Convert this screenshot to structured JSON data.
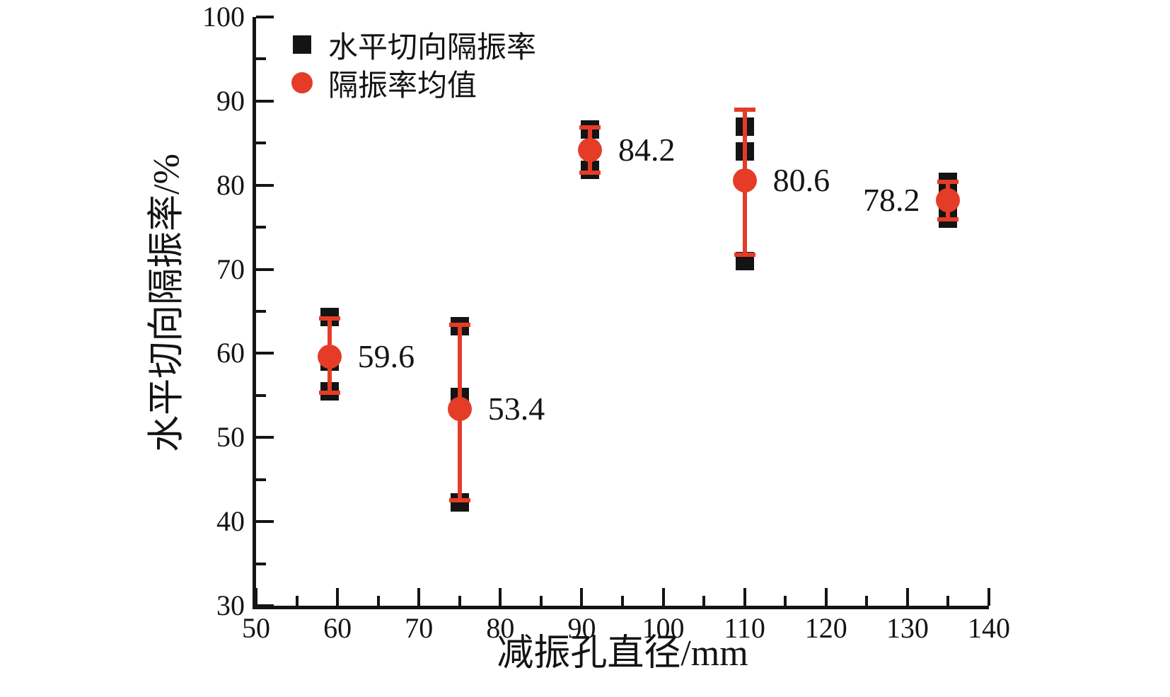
{
  "chart_data": {
    "type": "scatter",
    "title": "",
    "xlabel": "减振孔直径/mm",
    "ylabel": "水平切向隔振率/%",
    "xlim": [
      50,
      140
    ],
    "ylim": [
      30,
      100
    ],
    "x_major_ticks": [
      50,
      60,
      70,
      80,
      90,
      100,
      110,
      120,
      130,
      140
    ],
    "y_major_ticks": [
      30,
      40,
      50,
      60,
      70,
      80,
      90,
      100
    ],
    "minor_ticks": "one midway between each pair of major ticks (step 5)",
    "grid": false,
    "colors": {
      "black": "#141414",
      "red": "#e53c28"
    },
    "legend": {
      "position": "inside-top-left",
      "entries": [
        {
          "marker": "square",
          "color": "#141414",
          "label": "水平切向隔振率"
        },
        {
          "marker": "circle",
          "color": "#e53c28",
          "label": "隔振率均值"
        }
      ]
    },
    "series": [
      {
        "name": "水平切向隔振率",
        "marker": "square",
        "color": "#141414",
        "points": [
          {
            "x": 59,
            "y": 64.3
          },
          {
            "x": 59,
            "y": 59.0
          },
          {
            "x": 59,
            "y": 55.5
          },
          {
            "x": 75,
            "y": 63.2
          },
          {
            "x": 75,
            "y": 54.8
          },
          {
            "x": 75,
            "y": 42.3
          },
          {
            "x": 91,
            "y": 86.6
          },
          {
            "x": 91,
            "y": 81.8
          },
          {
            "x": 110,
            "y": 87.0
          },
          {
            "x": 110,
            "y": 84.0
          },
          {
            "x": 110,
            "y": 71.0
          },
          {
            "x": 135,
            "y": 80.4
          },
          {
            "x": 135,
            "y": 78.2
          },
          {
            "x": 135,
            "y": 76.0
          }
        ]
      },
      {
        "name": "隔振率均值",
        "marker": "circle-with-error-bars",
        "color": "#e53c28",
        "points": [
          {
            "x": 59,
            "y": 59.6,
            "label": "59.6",
            "err_low": 55.3,
            "err_high": 64.2,
            "label_side": "right"
          },
          {
            "x": 75,
            "y": 53.4,
            "label": "53.4",
            "err_low": 42.5,
            "err_high": 63.4,
            "label_side": "right"
          },
          {
            "x": 91,
            "y": 84.2,
            "label": "84.2",
            "err_low": 81.5,
            "err_high": 86.9,
            "label_side": "right"
          },
          {
            "x": 110,
            "y": 80.6,
            "label": "80.6",
            "err_low": 71.7,
            "err_high": 89.0,
            "label_side": "right"
          },
          {
            "x": 135,
            "y": 78.2,
            "label": "78.2",
            "err_low": 75.9,
            "err_high": 80.4,
            "label_side": "left"
          }
        ]
      }
    ]
  }
}
